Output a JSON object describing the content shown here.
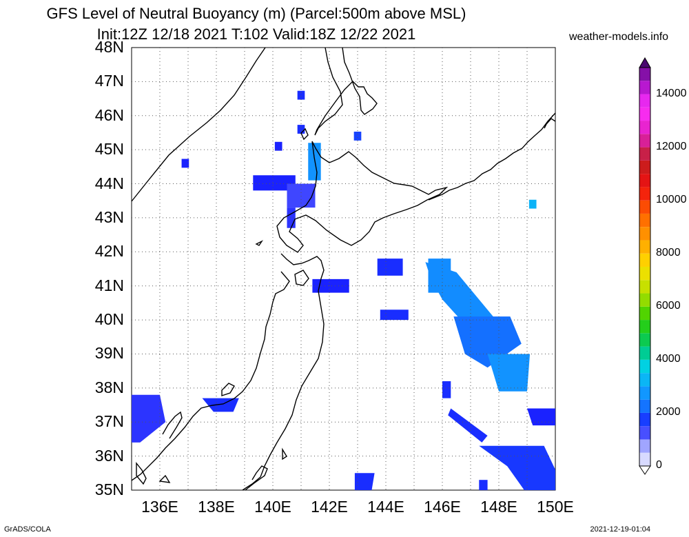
{
  "header": {
    "title_line1": "GFS Level of Neutral Buoyancy (m) (Parcel:500m above MSL)",
    "title_line2": "Init:12Z 12/18 2021 T:102 Valid:18Z 12/22 2021",
    "site": "weather-models.info"
  },
  "map": {
    "lat_labels": [
      "48N",
      "47N",
      "46N",
      "45N",
      "44N",
      "43N",
      "42N",
      "41N",
      "40N",
      "39N",
      "38N",
      "37N",
      "36N",
      "35N"
    ],
    "lon_labels": [
      "136E",
      "138E",
      "140E",
      "142E",
      "144E",
      "146E",
      "148E",
      "150E"
    ],
    "lat_range": [
      35,
      48
    ],
    "lon_range": [
      135,
      150
    ],
    "grid": "dotted",
    "land_fill": "#ffffff",
    "coast_color": "#000000"
  },
  "colorbar": {
    "labels": [
      "14000",
      "12000",
      "10000",
      "8000",
      "6000",
      "4000",
      "2000",
      "0"
    ],
    "min": 0,
    "max": 15000
  },
  "footer": {
    "left": "GrADS/COLA",
    "right": "2021-12-19-01:04"
  },
  "chart_data": {
    "type": "heatmap",
    "title": "GFS Level of Neutral Buoyancy (m) (Parcel:500m above MSL)",
    "xlabel": "",
    "ylabel": "",
    "xlim": [
      135,
      150
    ],
    "ylim": [
      35,
      48
    ],
    "units": "m",
    "cells": [
      {
        "lon": 141.0,
        "lat": 46.6,
        "v": 1600
      },
      {
        "lon": 141.0,
        "lat": 45.6,
        "v": 1600
      },
      {
        "lon": 143.0,
        "lat": 45.4,
        "v": 1800
      },
      {
        "lon": 140.2,
        "lat": 45.1,
        "v": 1500
      },
      {
        "lon": 141.5,
        "lat": 44.8,
        "v": 2700
      },
      {
        "lon": 136.9,
        "lat": 44.6,
        "v": 1500
      },
      {
        "lon": 139.8,
        "lat": 44.0,
        "v": 1500
      },
      {
        "lon": 141.2,
        "lat": 43.7,
        "v": 1300
      },
      {
        "lon": 140.6,
        "lat": 43.0,
        "v": 1400
      },
      {
        "lon": 149.2,
        "lat": 43.4,
        "v": 3200
      },
      {
        "lon": 144.3,
        "lat": 41.6,
        "v": 1600
      },
      {
        "lon": 146.0,
        "lat": 41.3,
        "v": 2600
      },
      {
        "lon": 142.1,
        "lat": 41.0,
        "v": 1500
      },
      {
        "lon": 144.4,
        "lat": 40.1,
        "v": 1600
      },
      {
        "lon": 146.8,
        "lat": 40.0,
        "v": 2600
      },
      {
        "lon": 147.8,
        "lat": 39.0,
        "v": 2200
      },
      {
        "lon": 148.1,
        "lat": 38.3,
        "v": 2700
      },
      {
        "lon": 146.2,
        "lat": 37.6,
        "v": 1600
      },
      {
        "lon": 147.0,
        "lat": 36.8,
        "v": 1600
      },
      {
        "lon": 148.5,
        "lat": 36.2,
        "v": 1700
      },
      {
        "lon": 149.8,
        "lat": 37.2,
        "v": 1500
      },
      {
        "lon": 135.5,
        "lat": 37.2,
        "v": 1400
      },
      {
        "lon": 138.3,
        "lat": 37.5,
        "v": 1600
      },
      {
        "lon": 143.4,
        "lat": 35.2,
        "v": 1600
      },
      {
        "lon": 147.5,
        "lat": 35.1,
        "v": 1600
      }
    ]
  }
}
